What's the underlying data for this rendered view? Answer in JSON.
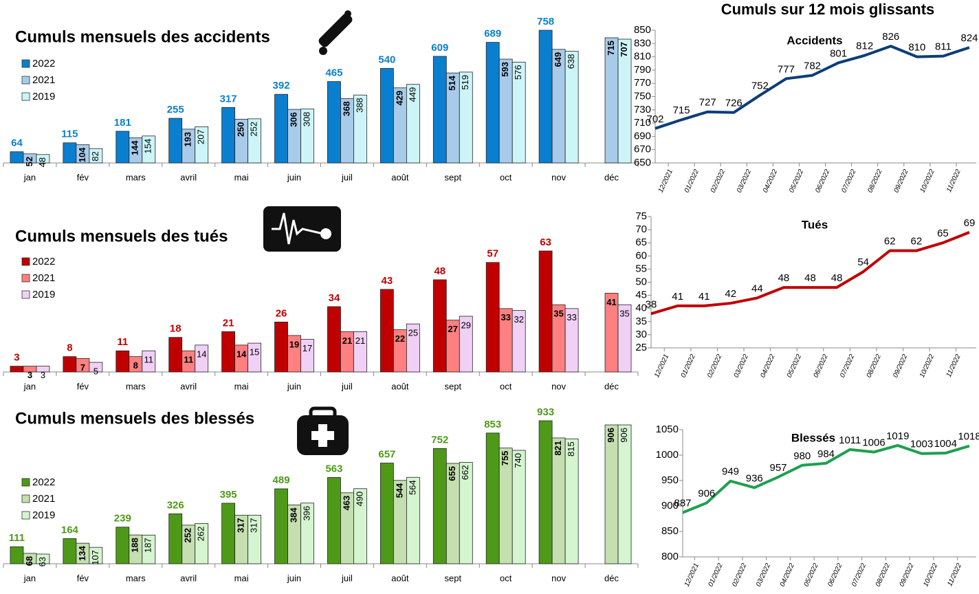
{
  "title": "Cumuls sur 12 mois glissants",
  "chart_data": [
    {
      "type": "bar",
      "title": "Cumuls mensuels des accidents",
      "categories": [
        "jan",
        "fév",
        "mars",
        "avril",
        "mai",
        "juin",
        "juil",
        "août",
        "sept",
        "oct",
        "nov",
        "déc"
      ],
      "series": [
        {
          "name": "2022",
          "color": "#0a7fd0",
          "values": [
            64,
            115,
            181,
            255,
            317,
            392,
            465,
            540,
            609,
            689,
            758,
            null
          ]
        },
        {
          "name": "2021",
          "color": "#a8cbea",
          "values": [
            52,
            104,
            144,
            193,
            250,
            306,
            368,
            429,
            514,
            593,
            649,
            715
          ]
        },
        {
          "name": "2019",
          "color": "#cdf5f8",
          "values": [
            48,
            82,
            154,
            207,
            252,
            308,
            388,
            449,
            519,
            576,
            638,
            707
          ]
        }
      ]
    },
    {
      "type": "bar",
      "title": "Cumuls mensuels des tués",
      "categories": [
        "jan",
        "fév",
        "mars",
        "avril",
        "mai",
        "juin",
        "juil",
        "août",
        "sept",
        "oct",
        "nov",
        "déc"
      ],
      "series": [
        {
          "name": "2022",
          "color": "#c00000",
          "values": [
            3,
            8,
            11,
            18,
            21,
            26,
            34,
            43,
            48,
            57,
            63,
            null
          ]
        },
        {
          "name": "2021",
          "color": "#ff8080",
          "values": [
            3,
            7,
            8,
            11,
            14,
            19,
            21,
            22,
            27,
            33,
            35,
            41
          ]
        },
        {
          "name": "2019",
          "color": "#f0d0f5",
          "values": [
            3,
            5,
            11,
            14,
            15,
            17,
            21,
            25,
            29,
            32,
            33,
            35
          ]
        }
      ]
    },
    {
      "type": "bar",
      "title": "Cumuls mensuels des blessés",
      "categories": [
        "jan",
        "fév",
        "mars",
        "avril",
        "mai",
        "juin",
        "juil",
        "août",
        "sept",
        "oct",
        "nov",
        "déc"
      ],
      "series": [
        {
          "name": "2022",
          "color": "#4e9a18",
          "values": [
            111,
            164,
            239,
            326,
            395,
            489,
            563,
            657,
            752,
            853,
            933,
            null
          ]
        },
        {
          "name": "2021",
          "color": "#c5dfb0",
          "values": [
            68,
            134,
            188,
            252,
            317,
            384,
            463,
            544,
            655,
            755,
            821,
            906
          ]
        },
        {
          "name": "2019",
          "color": "#d5f5d0",
          "values": [
            63,
            107,
            187,
            262,
            317,
            396,
            490,
            564,
            662,
            740,
            815,
            906
          ]
        }
      ]
    },
    {
      "type": "line",
      "title": "Accidents",
      "color": "#0b3d7a",
      "categories": [
        "12/2021",
        "01/2022",
        "02/2022",
        "03/2022",
        "04/2022",
        "05/2022",
        "06/2022",
        "07/2022",
        "08/2022",
        "09/2022",
        "10/2022",
        "11/2022",
        null
      ],
      "values": [
        702,
        715,
        727,
        726,
        752,
        777,
        782,
        801,
        812,
        826,
        810,
        811,
        824
      ],
      "ylim": [
        650,
        850
      ],
      "yticks": [
        650,
        670,
        690,
        710,
        730,
        750,
        770,
        790,
        810,
        830,
        850
      ]
    },
    {
      "type": "line",
      "title": "Tués",
      "color": "#c00000",
      "categories": [
        "12/2021",
        "01/2022",
        "02/2022",
        "03/2022",
        "04/2022",
        "05/2022",
        "06/2022",
        "07/2022",
        "08/2022",
        "09/2022",
        "10/2022",
        "11/2022",
        null
      ],
      "values": [
        38,
        41,
        41,
        42,
        44,
        48,
        48,
        48,
        54,
        62,
        62,
        65,
        69
      ],
      "ylim": [
        25,
        75
      ],
      "yticks": [
        25,
        30,
        35,
        40,
        45,
        50,
        55,
        60,
        65,
        70,
        75
      ]
    },
    {
      "type": "line",
      "title": "Blessés",
      "color": "#1ea050",
      "categories": [
        "12/2021",
        "01/2022",
        "02/2022",
        "03/2022",
        "04/2022",
        "05/2022",
        "06/2022",
        "07/2022",
        "08/2022",
        "09/2022",
        "10/2022",
        "11/2022",
        null
      ],
      "values": [
        887,
        906,
        949,
        936,
        957,
        980,
        984,
        1011,
        1006,
        1019,
        1003,
        1004,
        1018
      ],
      "ylim": [
        800,
        1050
      ],
      "yticks": [
        800,
        850,
        900,
        950,
        1000,
        1050
      ]
    }
  ]
}
